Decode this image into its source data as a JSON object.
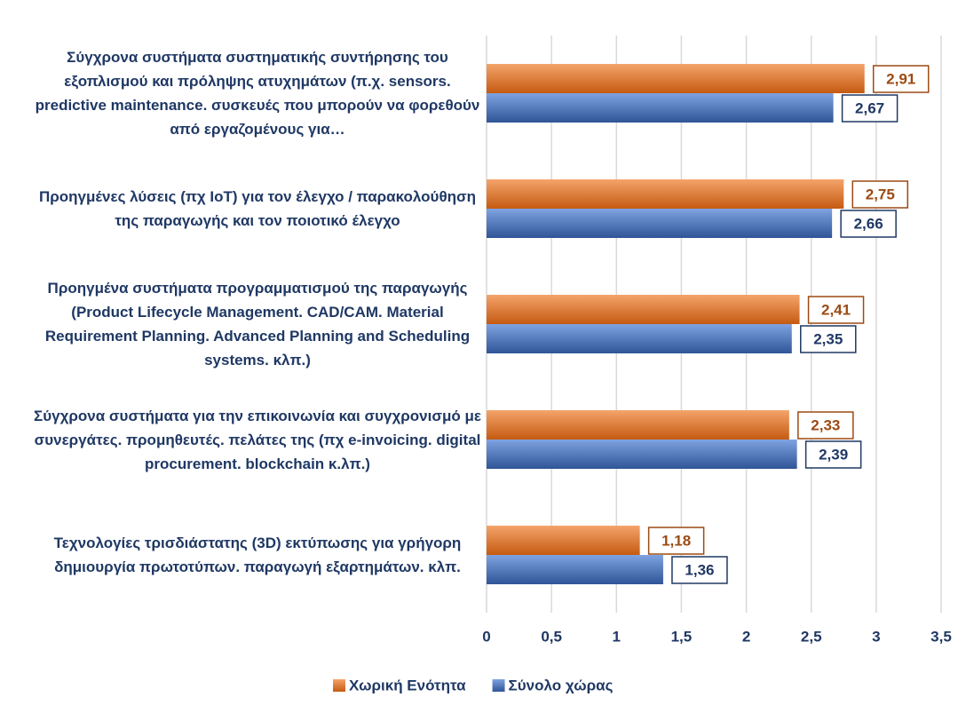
{
  "chart_data": {
    "type": "bar",
    "orientation": "horizontal",
    "categories": [
      "Σύγχρονα συστήματα συστηματικής συντήρησης του εξοπλισμού και πρόληψης ατυχημάτων (π.χ. sensors. predictive maintenance. συσκευές που μπορούν να φορεθούν από εργαζομένους για…",
      "Προηγμένες λύσεις (πχ IoT) για τον έλεγχο / παρακολούθηση της παραγωγής και τον ποιοτικό έλεγχο",
      "Προηγμένα συστήματα προγραμματισμού της παραγωγής (Product Lifecycle Management. CAD/CAM. Material Requirement Planning. Advanced Planning and Scheduling systems. κλπ.)",
      "Σύγχρονα συστήματα για την επικοινωνία και συγχρονισμό με συνεργάτες. προμηθευτές. πελάτες της (πχ e-invoicing. digital procurement. blockchain κ.λπ.)",
      "Τεχνολογίες τρισδιάστατης (3D) εκτύπωσης για γρήγορη δημιουργία πρωτοτύπων. παραγωγή εξαρτημάτων. κλπ."
    ],
    "series": [
      {
        "name": "Χωρική Ενότητα",
        "color": "#ed7d31",
        "values": [
          2.91,
          2.75,
          2.41,
          2.33,
          1.18
        ],
        "value_labels": [
          "2,91",
          "2,75",
          "2,41",
          "2,33",
          "1,18"
        ]
      },
      {
        "name": "Σύνολο χώρας",
        "color": "#4472c4",
        "values": [
          2.67,
          2.66,
          2.35,
          2.39,
          1.36
        ],
        "value_labels": [
          "2,67",
          "2,66",
          "2,35",
          "2,39",
          "1,36"
        ]
      }
    ],
    "xlim": [
      0,
      3.5
    ],
    "xticks": [
      0,
      {
        "value": 0.5,
        "label": "0,5"
      },
      1,
      {
        "value": 1.5,
        "label": "1,5"
      },
      2,
      {
        "value": 2.5,
        "label": "2,5"
      },
      3,
      {
        "value": 3.5,
        "label": "3,5"
      }
    ],
    "grid": true,
    "legend": "bottom"
  }
}
